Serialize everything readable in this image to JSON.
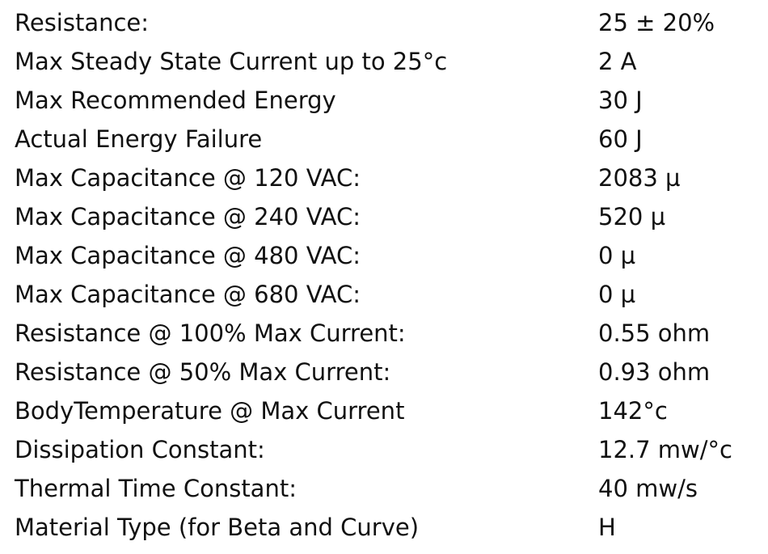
{
  "table": {
    "rows": [
      [
        "Resistance:",
        "25 ± 20%"
      ],
      [
        "Max Steady State Current up to 25°c",
        "2 A"
      ],
      [
        "Max Recommended Energy",
        "30 J"
      ],
      [
        "Actual Energy Failure",
        "60 J"
      ],
      [
        "Max Capacitance @ 120 VAC:",
        "2083 µ"
      ],
      [
        "Max Capacitance @ 240 VAC:",
        "520 µ"
      ],
      [
        "Max Capacitance @ 480 VAC:",
        "0 µ"
      ],
      [
        "Max Capacitance @ 680 VAC:",
        "0 µ"
      ],
      [
        "Resistance @ 100% Max Current:",
        "0.55 ohm"
      ],
      [
        "Resistance @ 50% Max Current:",
        "0.93 ohm"
      ],
      [
        "BodyTemperature @ Max Current",
        "142°c"
      ],
      [
        "Dissipation Constant:",
        "12.7 mw/°c"
      ],
      [
        "Thermal Time Constant:",
        "40 mw/s"
      ],
      [
        "Material Type (for Beta and Curve)",
        "H"
      ]
    ]
  }
}
